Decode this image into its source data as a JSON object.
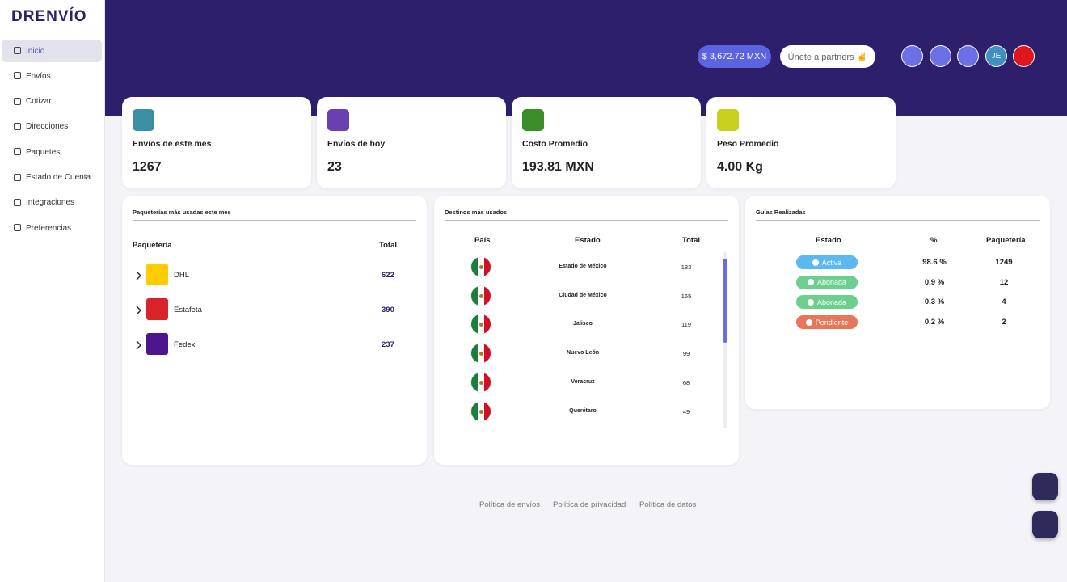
{
  "logo": "DRENVÍO",
  "sidebar": [
    "Inicio",
    "Envíos",
    "Cotizar",
    "Direcciones",
    "Paquetes",
    "Estado de Cuenta",
    "Integraciones",
    "Preferencias"
  ],
  "header": {
    "balance": "$ 3,672.72 MXN",
    "partners": "Únete a partners ✌",
    "avatar": "JE"
  },
  "stats": [
    {
      "label": "Envíos de este mes",
      "value": 1267
    },
    {
      "label": "Envíos de hoy",
      "value": 23
    },
    {
      "label": "Costo Promedio",
      "value": "193.81 MXN"
    },
    {
      "label": "Peso Promedio",
      "value": "4.00 Kg"
    }
  ],
  "carriers": {
    "title": "Paqueterías más usadas este mes",
    "headers": [
      "Paquetería",
      "Total"
    ],
    "rows": [
      {
        "name": "DHL",
        "total": 622
      },
      {
        "name": "Estafeta",
        "total": 390
      },
      {
        "name": "Fedex",
        "total": 237
      }
    ]
  },
  "destinations": {
    "title": "Destinos más usados",
    "headers": [
      "País",
      "Estado",
      "Total"
    ],
    "rows": [
      {
        "state": "Estado de México",
        "total": 183
      },
      {
        "state": "Ciudad de México",
        "total": 165
      },
      {
        "state": "Jalisco",
        "total": 119
      },
      {
        "state": "Nuevo León",
        "total": 99
      },
      {
        "state": "Veracruz",
        "total": 68
      },
      {
        "state": "Querétaro",
        "total": 49
      }
    ]
  },
  "guides": {
    "title": "Guías Realizadas",
    "headers": [
      "Estado",
      "%",
      "Paquetería"
    ],
    "rows": [
      {
        "status": "Activa",
        "percent": "98.6 %",
        "count": 1249
      },
      {
        "status": "Abonada",
        "percent": "0.9 %",
        "count": 12
      },
      {
        "status": "Abonada",
        "percent": "0.3 %",
        "count": 4
      },
      {
        "status": "Pendiente",
        "percent": "0.2 %",
        "count": 2
      }
    ]
  },
  "footer": [
    "Política de envíos",
    "Política de privacidad",
    "Política de datos"
  ]
}
